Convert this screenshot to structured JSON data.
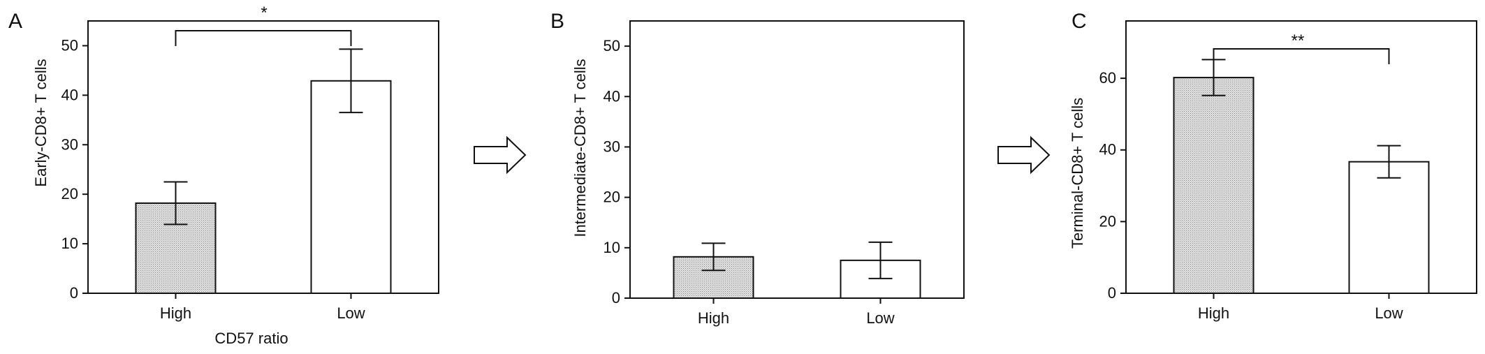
{
  "chart_data": [
    {
      "type": "bar",
      "panel_label": "A",
      "categories": [
        "High",
        "Low"
      ],
      "values": [
        18.2,
        42.9
      ],
      "errors": [
        4.3,
        6.4
      ],
      "xlabel": "CD57 ratio",
      "ylabel": "Early-CD8+ T cells",
      "ylim": [
        0,
        55
      ],
      "yticks": [
        0,
        10,
        20,
        30,
        40,
        50
      ],
      "significance": "*",
      "grid": false
    },
    {
      "type": "bar",
      "panel_label": "B",
      "categories": [
        "High",
        "Low"
      ],
      "values": [
        8.2,
        7.5
      ],
      "errors": [
        2.7,
        3.6
      ],
      "xlabel": "",
      "ylabel": "Intermediate-CD8+ T cells",
      "ylim": [
        0,
        55
      ],
      "yticks": [
        0,
        10,
        20,
        30,
        40,
        50
      ],
      "significance": "",
      "grid": false
    },
    {
      "type": "bar",
      "panel_label": "C",
      "categories": [
        "High",
        "Low"
      ],
      "values": [
        60.2,
        36.7
      ],
      "errors": [
        5.0,
        4.5
      ],
      "xlabel": "",
      "ylabel": "Terminal-CD8+ T cells",
      "ylim": [
        0,
        76
      ],
      "yticks": [
        0,
        20,
        40,
        60
      ],
      "significance": "**",
      "grid": false
    }
  ],
  "colors": {
    "axis": "#111111",
    "bar_high_fill": "#d8d8d8",
    "bar_low_fill": "#ffffff"
  },
  "icons": {
    "flow_arrow": "right-arrow-icon"
  }
}
